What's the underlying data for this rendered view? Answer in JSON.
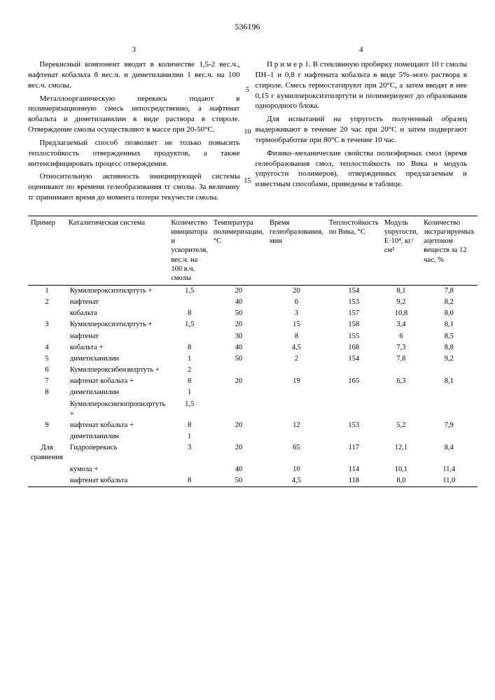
{
  "docnum": "536196",
  "left_colnum": "3",
  "right_colnum": "4",
  "left_paras": [
    "Перекисный компонент вводят в количестве 1,5-2 вес.ч., нафтенат кобальта 8 вес.ч. и диметиланилин 1 вес.ч. на 100 вес.ч. смолы.",
    "Металлоорганическую перекись подают в полимеризационную смесь непосредственно, а нафтенат кобальта и диметиланилин в виде раствора в стироле. Отверждение смолы осуществляют в массе при 20-50°С.",
    "Предлагаемый способ позволяет не только повысить теплостойкость отвержденных продуктов, а также интенсифицировать процесс отверждения.",
    "Относительную активность инициирующей системы оценивают по времени гелеобразования τг смолы. За величину τг принимают время до момента потери текучести смолы."
  ],
  "right_paras": [
    "П р и м е р 1. В стеклянную пробирку помещают 10 г смолы ПН–1 и 0,8 г нафтената кобальта в виде 5%–ного раствора в стироле. Смесь термостатируют при 20°С, а затем вводят в нее 0,15 г кумилпероксиэтилртути и полимеризуют до образования однородного блока.",
    "Для испытаний на упругость полученный образец выдерживают в течение 20 час при 20°С и затем подвергают термообработке при 80°С в течение 10 час.",
    "Физико–механические свойства полиэфирных смол (время гелеобразования смол, теплостойкость по Вика и модуль упругости полимеров), отвержденных предлагаемым и известным способами, приведены в таблице."
  ],
  "linemarks": {
    "m5": "5",
    "m10": "10",
    "m15": "15"
  },
  "headers": {
    "h1": "Пример",
    "h2": "Каталитическая система",
    "h3": "Количество инициатора и ускорителя, вес.ч. на 100 в.ч. смолы",
    "h4": "Температура полимеризации, °С",
    "h5": "Время гелеобразования, мин",
    "h6": "Теплостойкость по Вика, °С",
    "h7": "Модуль упругости, E·10⁴, кг/см²",
    "h8": "Количество экстрагируемых ацетоном веществ за 12 час, %"
  },
  "rows": [
    {
      "ex": "1",
      "cat": "Кумилпероксиэтилртуть +",
      "qty": "1,5",
      "t": "20",
      "gel": "20",
      "vic": "154",
      "mod": "8,1",
      "ext": "7,8"
    },
    {
      "ex": "2",
      "cat": "нафтенат",
      "qty": "",
      "t": "40",
      "gel": "6",
      "vic": "153",
      "mod": "9,2",
      "ext": "8,2"
    },
    {
      "ex": "",
      "cat": "кобальта",
      "qty": "8",
      "t": "50",
      "gel": "3",
      "vic": "157",
      "mod": "10,8",
      "ext": "8,0"
    },
    {
      "ex": "3",
      "cat": "Кумилпероксиэтилртуть +",
      "qty": "1,5",
      "t": "20",
      "gel": "15",
      "vic": "158",
      "mod": "3,4",
      "ext": "8,1"
    },
    {
      "ex": "",
      "cat": "нафтенат",
      "qty": "",
      "t": "30",
      "gel": "8",
      "vic": "155",
      "mod": "6",
      "ext": "8,5"
    },
    {
      "ex": "4",
      "cat": "кобальта +",
      "qty": "8",
      "t": "40",
      "gel": "4,5",
      "vic": "168",
      "mod": "7,3",
      "ext": "8,8"
    },
    {
      "ex": "5",
      "cat": "диметиланилин",
      "qty": "1",
      "t": "50",
      "gel": "2",
      "vic": "154",
      "mod": "7,8",
      "ext": "9,2"
    },
    {
      "ex": "6",
      "cat": "Кумилпероксибензилртуть +",
      "qty": "2",
      "t": "",
      "gel": "",
      "vic": "",
      "mod": "",
      "ext": ""
    },
    {
      "ex": "7",
      "cat": "нафтенат кобальта +",
      "qty": "8",
      "t": "20",
      "gel": "19",
      "vic": "165",
      "mod": "6,3",
      "ext": "8,1"
    },
    {
      "ex": "8",
      "cat": "диметиланилин",
      "qty": "1",
      "t": "",
      "gel": "",
      "vic": "",
      "mod": "",
      "ext": ""
    },
    {
      "ex": "",
      "cat": "Кумилпероксиизопропилртуть +",
      "qty": "1,5",
      "t": "",
      "gel": "",
      "vic": "",
      "mod": "",
      "ext": ""
    },
    {
      "ex": "9",
      "cat": "нафтенат кобальта +",
      "qty": "8",
      "t": "20",
      "gel": "12",
      "vic": "153",
      "mod": "5,2",
      "ext": "7,9"
    },
    {
      "ex": "",
      "cat": "диметиланилин",
      "qty": "1",
      "t": "",
      "gel": "",
      "vic": "",
      "mod": "",
      "ext": ""
    },
    {
      "ex": "Для сравнения",
      "cat": "Гидроперекись",
      "qty": "3",
      "t": "20",
      "gel": "65",
      "vic": "117",
      "mod": "12,1",
      "ext": "8,4"
    },
    {
      "ex": "",
      "cat": "кумола +",
      "qty": "",
      "t": "40",
      "gel": "10",
      "vic": "114",
      "mod": "10,1",
      "ext": "11,4"
    },
    {
      "ex": "",
      "cat": "нафтенат кобальта",
      "qty": "8",
      "t": "50",
      "gel": "4,5",
      "vic": "118",
      "mod": "8,0",
      "ext": "11,0"
    }
  ],
  "col_widths": [
    "52px",
    "110px",
    "70px",
    "62px",
    "62px",
    "66px",
    "64px",
    "74px"
  ]
}
